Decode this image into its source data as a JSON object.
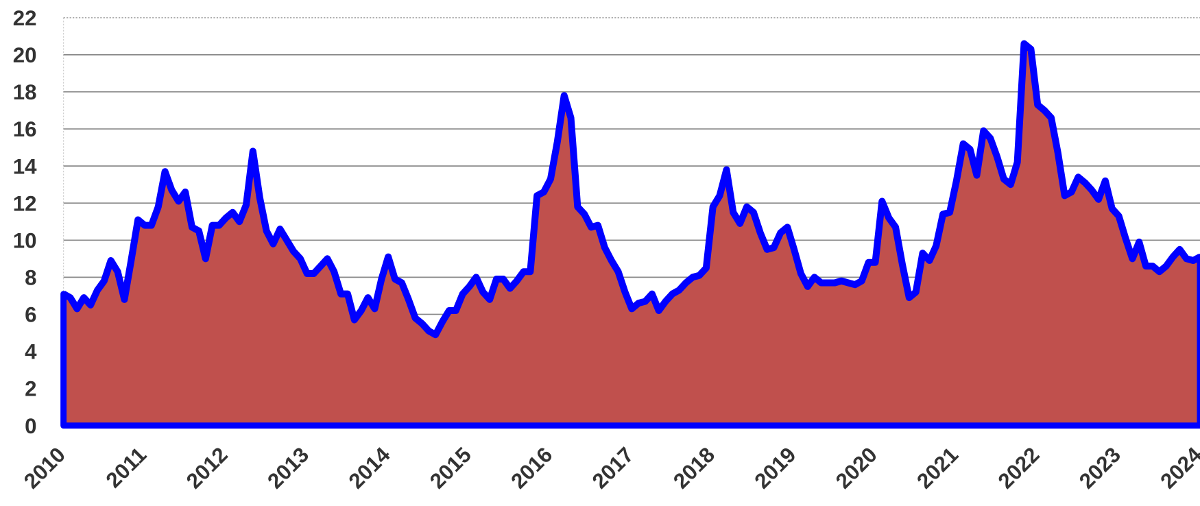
{
  "chart_data": {
    "type": "area",
    "x": [
      2010,
      2010.083,
      2010.167,
      2010.25,
      2010.333,
      2010.417,
      2010.5,
      2010.583,
      2010.667,
      2010.75,
      2010.833,
      2010.917,
      2011,
      2011.083,
      2011.167,
      2011.25,
      2011.333,
      2011.417,
      2011.5,
      2011.583,
      2011.667,
      2011.75,
      2011.833,
      2011.917,
      2012,
      2012.083,
      2012.167,
      2012.25,
      2012.333,
      2012.417,
      2012.5,
      2012.583,
      2012.667,
      2012.75,
      2012.833,
      2012.917,
      2013,
      2013.083,
      2013.167,
      2013.25,
      2013.333,
      2013.417,
      2013.5,
      2013.583,
      2013.667,
      2013.75,
      2013.833,
      2013.917,
      2014,
      2014.083,
      2014.167,
      2014.25,
      2014.333,
      2014.417,
      2014.5,
      2014.583,
      2014.667,
      2014.75,
      2014.833,
      2014.917,
      2015,
      2015.083,
      2015.167,
      2015.25,
      2015.333,
      2015.417,
      2015.5,
      2015.583,
      2015.667,
      2015.75,
      2015.833,
      2015.917,
      2016,
      2016.083,
      2016.167,
      2016.25,
      2016.333,
      2016.417,
      2016.5,
      2016.583,
      2016.667,
      2016.75,
      2016.833,
      2016.917,
      2017,
      2017.083,
      2017.167,
      2017.25,
      2017.333,
      2017.417,
      2017.5,
      2017.583,
      2017.667,
      2017.75,
      2017.833,
      2017.917,
      2018,
      2018.083,
      2018.167,
      2018.25,
      2018.333,
      2018.417,
      2018.5,
      2018.583,
      2018.667,
      2018.75,
      2018.833,
      2018.917,
      2019,
      2019.083,
      2019.167,
      2019.25,
      2019.333,
      2019.417,
      2019.5,
      2019.583,
      2019.667,
      2019.75,
      2019.833,
      2019.917,
      2020,
      2020.083,
      2020.167,
      2020.25,
      2020.333,
      2020.417,
      2020.5,
      2020.583,
      2020.667,
      2020.75,
      2020.833,
      2020.917,
      2021,
      2021.083,
      2021.167,
      2021.25,
      2021.333,
      2021.417,
      2021.5,
      2021.583,
      2021.667,
      2021.75,
      2021.833,
      2021.917,
      2022,
      2022.083,
      2022.167,
      2022.25,
      2022.333,
      2022.417,
      2022.5,
      2022.583,
      2022.667,
      2022.75,
      2022.833,
      2022.917,
      2023,
      2023.083,
      2023.167,
      2023.25,
      2023.333,
      2023.417,
      2023.5,
      2023.583,
      2023.667,
      2023.75,
      2023.833,
      2023.917,
      2024
    ],
    "series": [
      {
        "color": "#0000ff",
        "fill": "#c0504d",
        "values": [
          7.1,
          6.9,
          6.3,
          6.9,
          6.5,
          7.3,
          7.8,
          8.9,
          8.3,
          6.8,
          8.9,
          11.1,
          10.8,
          10.8,
          11.8,
          13.7,
          12.7,
          12.1,
          12.6,
          10.7,
          10.5,
          9.0,
          10.8,
          10.8,
          11.2,
          11.5,
          11.0,
          11.9,
          14.8,
          12.3,
          10.5,
          9.8,
          10.6,
          10.0,
          9.4,
          9.0,
          8.2,
          8.2,
          8.6,
          9.0,
          8.3,
          7.1,
          7.1,
          5.7,
          6.2,
          6.9,
          6.3,
          7.9,
          9.1,
          7.9,
          7.7,
          6.8,
          5.8,
          5.5,
          5.1,
          4.9,
          5.6,
          6.2,
          6.2,
          7.1,
          7.5,
          8.0,
          7.2,
          6.8,
          7.9,
          7.9,
          7.4,
          7.8,
          8.3,
          8.3,
          12.4,
          12.6,
          13.3,
          15.3,
          17.8,
          16.6,
          11.8,
          11.4,
          10.7,
          10.8,
          9.6,
          8.9,
          8.3,
          7.2,
          6.3,
          6.6,
          6.7,
          7.1,
          6.2,
          6.7,
          7.1,
          7.3,
          7.7,
          8.0,
          8.1,
          8.5,
          11.8,
          12.4,
          13.8,
          11.5,
          10.9,
          11.8,
          11.5,
          10.4,
          9.5,
          9.6,
          10.4,
          10.7,
          9.5,
          8.2,
          7.5,
          8.0,
          7.7,
          7.7,
          7.7,
          7.8,
          7.7,
          7.6,
          7.8,
          8.8,
          8.8,
          12.1,
          11.2,
          10.7,
          8.7,
          6.9,
          7.2,
          9.3,
          8.9,
          9.7,
          11.4,
          11.5,
          13.2,
          15.2,
          14.9,
          13.5,
          15.9,
          15.5,
          14.5,
          13.3,
          13.0,
          14.2,
          20.6,
          20.3,
          17.3,
          17.0,
          16.6,
          14.7,
          12.4,
          12.6,
          13.4,
          13.1,
          12.7,
          12.2,
          13.2,
          11.7,
          11.3,
          10.1,
          9.0,
          9.9,
          8.6,
          8.6,
          8.3,
          8.6,
          9.1,
          9.5,
          9.0,
          8.9,
          9.1
        ]
      }
    ],
    "xlim": [
      2010,
      2024
    ],
    "xticks": [
      2010,
      2011,
      2012,
      2013,
      2014,
      2015,
      2016,
      2017,
      2018,
      2019,
      2020,
      2021,
      2022,
      2023,
      2024
    ],
    "ylim": [
      0,
      22
    ],
    "yticks": [
      0,
      2,
      4,
      6,
      8,
      10,
      12,
      14,
      16,
      18,
      20,
      22
    ],
    "grid": true
  }
}
